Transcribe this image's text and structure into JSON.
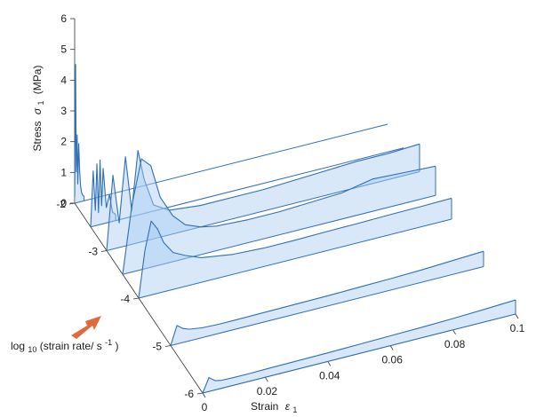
{
  "chart_data": {
    "type": "line",
    "view": "3d-waterfall",
    "xlabel": "Strain",
    "xlabel_symbol": "ε",
    "xlabel_sub": "1",
    "ylabel": "Stress",
    "ylabel_symbol": "σ",
    "ylabel_sub": "1",
    "ylabel_unit": "(MPa)",
    "depth_label_prefix": "log",
    "depth_label_sub": "10",
    "depth_label_main": "(strain rate/ s",
    "depth_label_sup": "-1",
    "depth_label_suffix": ")",
    "xlim": [
      0,
      0.1
    ],
    "ylim": [
      0,
      6
    ],
    "depth_lim": [
      -6,
      -2
    ],
    "x_ticks": [
      "0",
      "0.02",
      "0.04",
      "0.06",
      "0.08",
      "0.1"
    ],
    "y_ticks": [
      "0",
      "1",
      "2",
      "3",
      "4",
      "5",
      "6"
    ],
    "depth_ticks": [
      "-6",
      "-5",
      "-4",
      "-3",
      "-2"
    ],
    "arrow_color": "#e06a3c",
    "series_color": "#2f6fb8",
    "fill_color": "#a9cdf2",
    "series": [
      {
        "depth": -2,
        "end_x": 0.003,
        "x": [
          0,
          0.0003,
          0.0005,
          0.0008,
          0.001,
          0.0013,
          0.0016,
          0.0019,
          0.0022,
          0.0025,
          0.003
        ],
        "y": [
          0.2,
          4.5,
          1.0,
          2.2,
          0.6,
          1.9,
          1.0,
          0.5,
          0.3,
          0.2,
          0.15
        ]
      },
      {
        "depth": -2.5,
        "end_x": 0.008,
        "x": [
          0,
          0.0008,
          0.0015,
          0.002,
          0.0025,
          0.003,
          0.0035,
          0.004,
          0.005,
          0.006,
          0.007,
          0.008
        ],
        "y": [
          0,
          1.8,
          0.5,
          2.0,
          0.4,
          2.1,
          0.6,
          1.8,
          0.5,
          0.9,
          0.3,
          0.2
        ]
      },
      {
        "depth": -3,
        "end_x": 0.1,
        "x": [
          0,
          0.002,
          0.004,
          0.006,
          0.008,
          0.01,
          0.012,
          0.015,
          0.02,
          0.03,
          0.04,
          0.05,
          0.06,
          0.07,
          0.08,
          0.09,
          0.1
        ],
        "y": [
          0,
          2.4,
          0.8,
          2.9,
          1.1,
          3.0,
          2.0,
          1.1,
          0.8,
          0.7,
          0.7,
          0.7,
          0.75,
          0.8,
          0.85,
          0.85,
          0.9
        ]
      },
      {
        "depth": -3.5,
        "end_x": 0.1,
        "x": [
          0,
          0.003,
          0.006,
          0.009,
          0.012,
          0.016,
          0.02,
          0.025,
          0.03,
          0.04,
          0.05,
          0.06,
          0.07,
          0.08,
          0.09,
          0.1
        ],
        "y": [
          0,
          2.2,
          3.6,
          3.3,
          2.2,
          1.5,
          1.1,
          0.9,
          0.8,
          0.75,
          0.75,
          0.8,
          0.85,
          1.05,
          1.0,
          0.95
        ]
      },
      {
        "depth": -4,
        "end_x": 0.1,
        "x": [
          0,
          0.002,
          0.004,
          0.006,
          0.008,
          0.011,
          0.015,
          0.02,
          0.03,
          0.04,
          0.05,
          0.06,
          0.07,
          0.08,
          0.09,
          0.1
        ],
        "y": [
          0,
          1.5,
          2.4,
          2.1,
          1.6,
          1.2,
          1.0,
          0.8,
          0.65,
          0.6,
          0.6,
          0.62,
          0.63,
          0.65,
          0.66,
          0.68
        ]
      },
      {
        "depth": -5,
        "end_x": 0.1,
        "x": [
          0,
          0.002,
          0.004,
          0.006,
          0.01,
          0.015,
          0.02,
          0.03,
          0.04,
          0.05,
          0.06,
          0.07,
          0.08,
          0.09,
          0.1
        ],
        "y": [
          0,
          0.6,
          0.45,
          0.38,
          0.32,
          0.3,
          0.3,
          0.31,
          0.32,
          0.33,
          0.35,
          0.37,
          0.4,
          0.45,
          0.5
        ]
      },
      {
        "depth": -6,
        "end_x": 0.1,
        "x": [
          0,
          0.002,
          0.004,
          0.006,
          0.01,
          0.015,
          0.02,
          0.03,
          0.04,
          0.05,
          0.06,
          0.07,
          0.08,
          0.09,
          0.1
        ],
        "y": [
          0,
          0.45,
          0.3,
          0.26,
          0.25,
          0.25,
          0.26,
          0.27,
          0.28,
          0.3,
          0.32,
          0.34,
          0.37,
          0.41,
          0.46
        ]
      }
    ]
  }
}
